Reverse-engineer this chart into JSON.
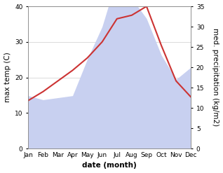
{
  "months": [
    "Jan",
    "Feb",
    "Mar",
    "Apr",
    "May",
    "Jun",
    "Jul",
    "Aug",
    "Sep",
    "Oct",
    "Nov",
    "Dec"
  ],
  "max_temp": [
    13.5,
    16.0,
    19.0,
    22.0,
    25.5,
    30.0,
    36.5,
    37.5,
    40.0,
    29.0,
    19.0,
    14.5
  ],
  "precipitation": [
    13.0,
    12.0,
    12.5,
    13.0,
    22.0,
    30.0,
    42.0,
    37.0,
    32.0,
    23.0,
    17.0,
    20.0
  ],
  "temp_color": "#cc3333",
  "precip_fill_color": "#c8d0f0",
  "temp_ylim": [
    0,
    40
  ],
  "precip_ylim": [
    0,
    35
  ],
  "temp_yticks": [
    0,
    10,
    20,
    30,
    40
  ],
  "precip_yticks": [
    0,
    5,
    10,
    15,
    20,
    25,
    30,
    35
  ],
  "xlabel": "date (month)",
  "ylabel_left": "max temp (C)",
  "ylabel_right": "med. precipitation (kg/m2)",
  "bg_color": "#ffffff",
  "label_fontsize": 7.5,
  "tick_fontsize": 6.5
}
